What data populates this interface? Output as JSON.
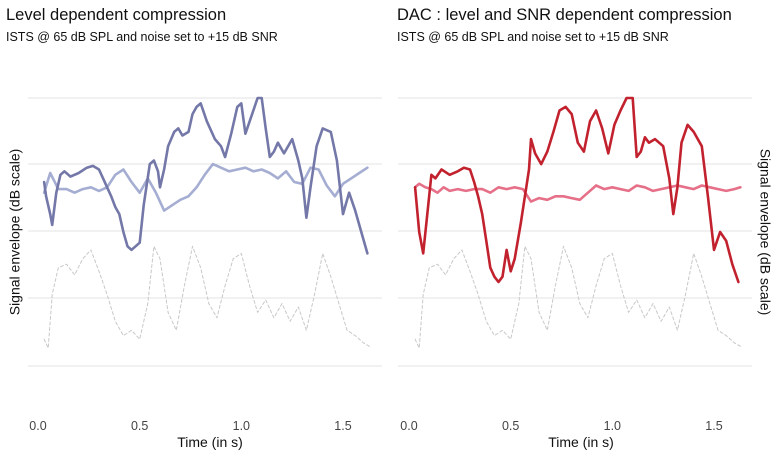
{
  "chart_data": [
    {
      "type": "line",
      "title": "Level dependent compression",
      "subtitle": "ISTS @ 65 dB SPL and noise set to +15 dB SNR",
      "xlabel": "Time (in s)",
      "ylabel": "Signal envelope (dB scale)",
      "xlim": [
        0,
        1.65
      ],
      "x_ticks": [
        "0.0",
        "0.5",
        "1.0",
        "1.5"
      ],
      "grid": "horizontal",
      "series": [
        {
          "color": "#7478a8",
          "style": "solid",
          "x": [
            0.03,
            0.04,
            0.06,
            0.07,
            0.09,
            0.11,
            0.13,
            0.16,
            0.2,
            0.24,
            0.27,
            0.3,
            0.32,
            0.34,
            0.36,
            0.38,
            0.4,
            0.42,
            0.44,
            0.46,
            0.48,
            0.5,
            0.52,
            0.55,
            0.57,
            0.59,
            0.6,
            0.62,
            0.64,
            0.67,
            0.69,
            0.71,
            0.74,
            0.76,
            0.78,
            0.8,
            0.83,
            0.87,
            0.9,
            0.92,
            0.95,
            0.98,
            1.0,
            1.02,
            1.05,
            1.08,
            1.1,
            1.12,
            1.14,
            1.16,
            1.18,
            1.21,
            1.25,
            1.28,
            1.3,
            1.32,
            1.34,
            1.37,
            1.4,
            1.44,
            1.47,
            1.5,
            1.53,
            1.56,
            1.59,
            1.62
          ],
          "y": [
            28,
            20,
            10,
            4,
            22,
            32,
            34,
            31,
            33,
            36,
            37,
            35,
            30,
            25,
            20,
            14,
            10,
            0,
            -8,
            -10,
            -8,
            -6,
            15,
            38,
            40,
            34,
            25,
            35,
            48,
            56,
            58,
            54,
            56,
            66,
            70,
            72,
            62,
            52,
            48,
            42,
            55,
            70,
            72,
            55,
            65,
            75,
            75,
            58,
            42,
            45,
            50,
            44,
            52,
            40,
            30,
            8,
            25,
            48,
            58,
            56,
            40,
            10,
            22,
            12,
            0,
            -12
          ]
        },
        {
          "color": "#a5aed2",
          "style": "solid",
          "x": [
            0.03,
            0.06,
            0.1,
            0.14,
            0.18,
            0.22,
            0.26,
            0.3,
            0.34,
            0.38,
            0.42,
            0.46,
            0.5,
            0.54,
            0.58,
            0.62,
            0.66,
            0.7,
            0.74,
            0.78,
            0.82,
            0.86,
            0.9,
            0.94,
            0.98,
            1.02,
            1.06,
            1.1,
            1.14,
            1.18,
            1.22,
            1.26,
            1.3,
            1.34,
            1.38,
            1.42,
            1.46,
            1.5,
            1.54,
            1.58,
            1.62
          ],
          "y": [
            22,
            33,
            24,
            24,
            22,
            24,
            25,
            23,
            25,
            32,
            35,
            28,
            22,
            30,
            22,
            12,
            15,
            18,
            20,
            25,
            32,
            38,
            36,
            34,
            35,
            36,
            34,
            35,
            33,
            30,
            34,
            28,
            27,
            36,
            35,
            26,
            20,
            27,
            30,
            33,
            36
          ]
        },
        {
          "color": "#c8c8c8",
          "style": "dashed",
          "x": [
            0.03,
            0.05,
            0.07,
            0.1,
            0.14,
            0.18,
            0.22,
            0.26,
            0.3,
            0.34,
            0.38,
            0.42,
            0.46,
            0.5,
            0.54,
            0.57,
            0.6,
            0.64,
            0.68,
            0.72,
            0.76,
            0.8,
            0.84,
            0.88,
            0.92,
            0.96,
            1.0,
            1.04,
            1.08,
            1.12,
            1.16,
            1.2,
            1.24,
            1.28,
            1.32,
            1.36,
            1.4,
            1.44,
            1.48,
            1.52,
            1.56,
            1.6,
            1.63
          ],
          "y": [
            -60,
            -65,
            -35,
            -20,
            -18,
            -24,
            -15,
            -10,
            -22,
            -35,
            -50,
            -58,
            -55,
            -60,
            -40,
            -8,
            -15,
            -45,
            -55,
            -30,
            -8,
            -20,
            -40,
            -48,
            -30,
            -15,
            -12,
            -30,
            -45,
            -38,
            -48,
            -40,
            -50,
            -42,
            -55,
            -35,
            -12,
            -25,
            -40,
            -55,
            -58,
            -62,
            -64
          ]
        }
      ]
    },
    {
      "type": "line",
      "title": "DAC : level and SNR dependent compression",
      "subtitle": "ISTS @ 65 dB SPL and noise set to +15 dB SNR",
      "xlabel": "Time (in s)",
      "ylabel": "Signal envelope (dB scale)",
      "xlim": [
        0,
        1.65
      ],
      "x_ticks": [
        "0.0",
        "0.5",
        "1.0",
        "1.5"
      ],
      "grid": "horizontal",
      "series": [
        {
          "color": "#c2212e",
          "style": "solid",
          "x": [
            0.03,
            0.05,
            0.07,
            0.09,
            0.11,
            0.13,
            0.16,
            0.2,
            0.24,
            0.27,
            0.3,
            0.32,
            0.34,
            0.36,
            0.38,
            0.4,
            0.42,
            0.44,
            0.46,
            0.48,
            0.5,
            0.52,
            0.55,
            0.57,
            0.59,
            0.6,
            0.62,
            0.65,
            0.68,
            0.71,
            0.74,
            0.77,
            0.8,
            0.83,
            0.86,
            0.89,
            0.92,
            0.95,
            0.98,
            1.01,
            1.04,
            1.07,
            1.1,
            1.12,
            1.14,
            1.16,
            1.18,
            1.21,
            1.25,
            1.28,
            1.3,
            1.32,
            1.34,
            1.37,
            1.4,
            1.44,
            1.47,
            1.5,
            1.53,
            1.56,
            1.59,
            1.62
          ],
          "y": [
            25,
            0,
            -12,
            10,
            32,
            30,
            35,
            32,
            34,
            36,
            35,
            28,
            20,
            10,
            -5,
            -20,
            -25,
            -28,
            -25,
            -10,
            -22,
            -15,
            5,
            20,
            35,
            52,
            44,
            38,
            45,
            56,
            68,
            70,
            66,
            50,
            45,
            62,
            68,
            58,
            44,
            60,
            68,
            75,
            75,
            42,
            45,
            53,
            50,
            52,
            48,
            30,
            10,
            25,
            50,
            60,
            56,
            48,
            20,
            -10,
            0,
            -5,
            -18,
            -28
          ]
        },
        {
          "color": "#e67088",
          "style": "solid",
          "x": [
            0.03,
            0.05,
            0.08,
            0.11,
            0.14,
            0.17,
            0.2,
            0.24,
            0.28,
            0.32,
            0.36,
            0.4,
            0.44,
            0.48,
            0.52,
            0.56,
            0.6,
            0.64,
            0.68,
            0.72,
            0.76,
            0.8,
            0.84,
            0.88,
            0.92,
            0.96,
            1.0,
            1.04,
            1.08,
            1.12,
            1.16,
            1.2,
            1.24,
            1.28,
            1.32,
            1.36,
            1.4,
            1.44,
            1.48,
            1.52,
            1.56,
            1.6,
            1.63
          ],
          "y": [
            25,
            27,
            25,
            24,
            22,
            25,
            23,
            24,
            23,
            24,
            24,
            22,
            25,
            24,
            25,
            24,
            17,
            19,
            18,
            20,
            20,
            19,
            18,
            22,
            26,
            24,
            25,
            24,
            23,
            26,
            25,
            23,
            24,
            25,
            26,
            25,
            24,
            26,
            25,
            24,
            23,
            24,
            25
          ]
        },
        {
          "color": "#c8c8c8",
          "style": "dashed",
          "x": [
            0.03,
            0.05,
            0.07,
            0.1,
            0.14,
            0.18,
            0.22,
            0.26,
            0.3,
            0.34,
            0.38,
            0.42,
            0.46,
            0.5,
            0.54,
            0.57,
            0.6,
            0.64,
            0.68,
            0.72,
            0.76,
            0.8,
            0.84,
            0.88,
            0.92,
            0.96,
            1.0,
            1.04,
            1.08,
            1.12,
            1.16,
            1.2,
            1.24,
            1.28,
            1.32,
            1.36,
            1.4,
            1.44,
            1.48,
            1.52,
            1.56,
            1.6,
            1.63
          ],
          "y": [
            -60,
            -65,
            -35,
            -20,
            -18,
            -24,
            -15,
            -10,
            -22,
            -35,
            -50,
            -58,
            -55,
            -60,
            -40,
            -8,
            -15,
            -45,
            -55,
            -30,
            -8,
            -20,
            -40,
            -48,
            -30,
            -15,
            -12,
            -30,
            -45,
            -38,
            -48,
            -40,
            -50,
            -42,
            -55,
            -35,
            -12,
            -25,
            -40,
            -55,
            -58,
            -62,
            -64
          ]
        }
      ]
    }
  ]
}
